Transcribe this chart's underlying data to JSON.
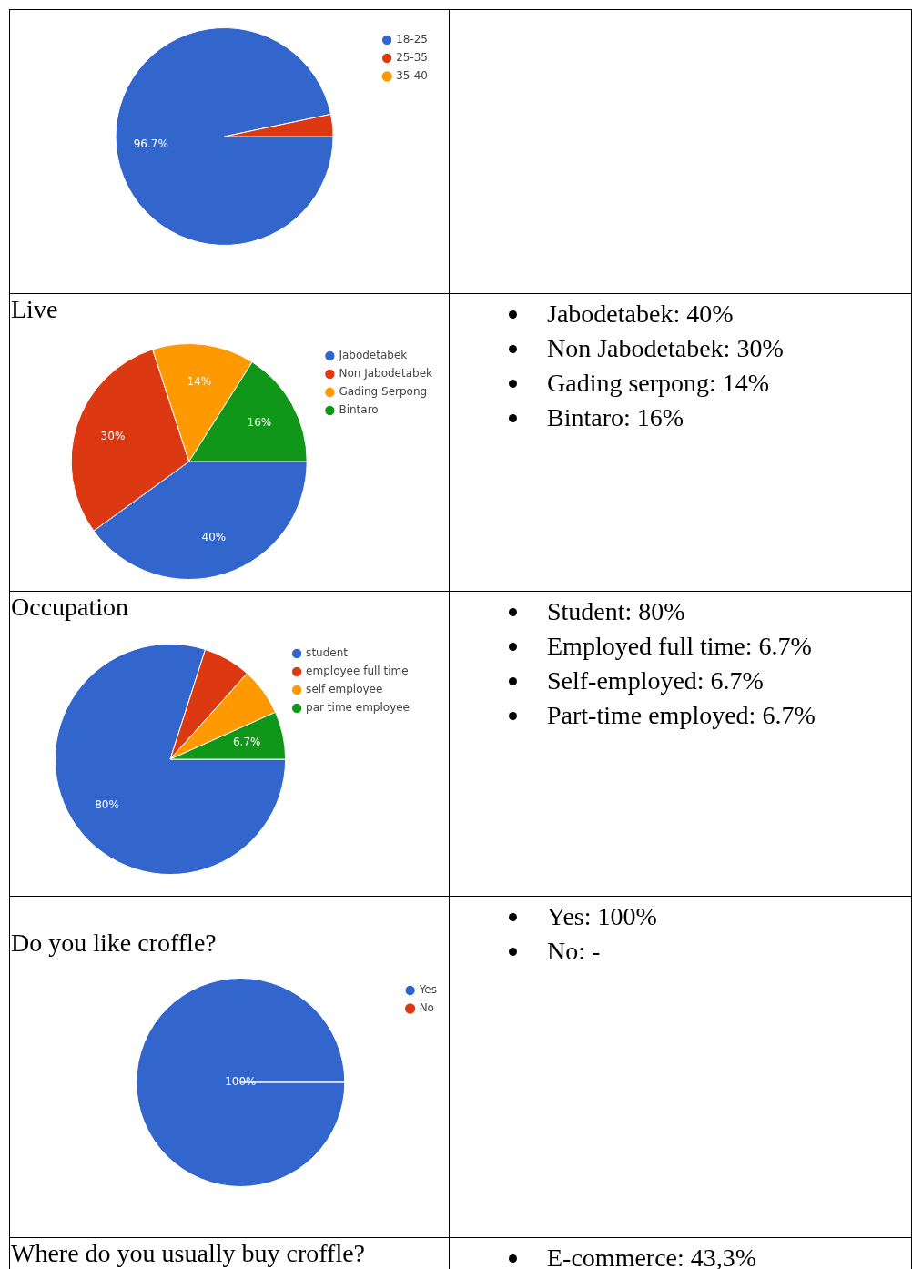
{
  "chart_data": [
    {
      "type": "pie",
      "categories": [
        "18-25",
        "25-35",
        "35-40"
      ],
      "values": [
        96.7,
        3.3,
        0
      ],
      "colors": [
        "#3366cc",
        "#dc3912",
        "#ff9900"
      ],
      "value_labels": [
        "96.7%",
        null,
        null
      ],
      "legend": "right"
    },
    {
      "type": "pie",
      "title": "Live",
      "categories": [
        "Jabodetabek",
        "Non Jabodetabek",
        "Gading Serpong",
        "Bintaro"
      ],
      "values": [
        40,
        30,
        14,
        16
      ],
      "colors": [
        "#3366cc",
        "#dc3912",
        "#ff9900",
        "#109618"
      ],
      "value_labels": [
        "40%",
        "30%",
        "14%",
        "16%"
      ],
      "legend": "right"
    },
    {
      "type": "other",
      "annotations": [
        "Jabodetabek: 40%",
        "Non Jabodetabek: 30%",
        "Gading serpong: 14%",
        "Bintaro: 16%"
      ]
    },
    {
      "type": "pie",
      "title": "Occupation",
      "categories": [
        "student",
        "employee full time",
        "self employee",
        "par time employee"
      ],
      "values": [
        80,
        6.7,
        6.7,
        6.7
      ],
      "colors": [
        "#3366cc",
        "#dc3912",
        "#ff9900",
        "#109618"
      ],
      "value_labels": [
        "80%",
        null,
        null,
        "6.7%"
      ],
      "legend": "right"
    },
    {
      "type": "other",
      "annotations": [
        "Student: 80%",
        "Employed full time: 6.7%",
        "Self-employed: 6.7%",
        "Part-time employed: 6.7%"
      ]
    },
    {
      "type": "pie",
      "title": "Do you like croffle?",
      "categories": [
        "Yes",
        "No"
      ],
      "values": [
        100,
        0
      ],
      "colors": [
        "#3366cc",
        "#dc3912"
      ],
      "value_labels": [
        "100%",
        null
      ],
      "legend": "right"
    },
    {
      "type": "other",
      "annotations": [
        "Yes: 100%",
        "No: -"
      ]
    },
    {
      "type": "other",
      "title": "Where do you usually buy croffle?"
    },
    {
      "type": "other",
      "annotations": [
        "E-commerce: 43,3%"
      ]
    }
  ]
}
